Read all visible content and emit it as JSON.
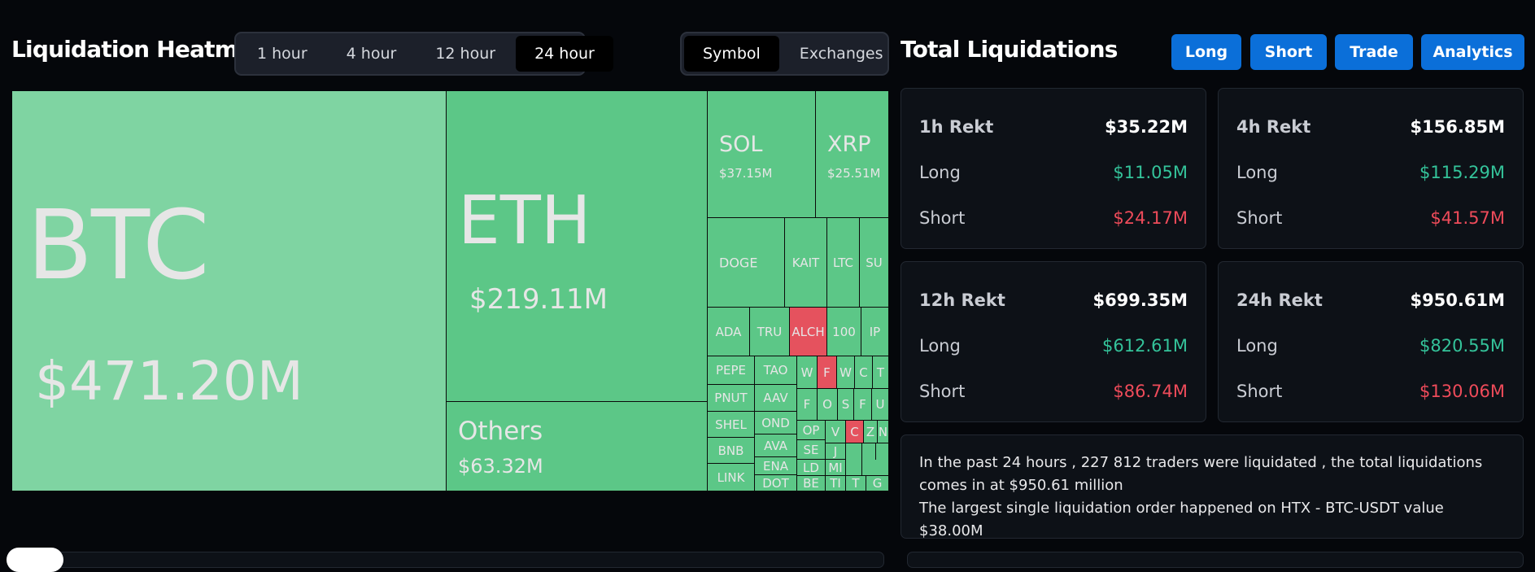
{
  "heatmap": {
    "title": "Liquidation Heatmap",
    "timeframes": [
      "1 hour",
      "4 hour",
      "12 hour",
      "24 hour"
    ],
    "active_timeframe": "24 hour",
    "views": [
      "Symbol",
      "Exchanges"
    ],
    "active_view": "Symbol",
    "cells": [
      {
        "symbol": "BTC",
        "amount": "$471.20M"
      },
      {
        "symbol": "ETH",
        "amount": "$219.11M"
      },
      {
        "symbol": "Others",
        "amount": "$63.32M"
      },
      {
        "symbol": "SOL",
        "amount": "$37.15M"
      },
      {
        "symbol": "XRP",
        "amount": "$25.51M"
      },
      {
        "symbol": "DOGE"
      },
      {
        "symbol": "KAIT"
      },
      {
        "symbol": "LTC"
      },
      {
        "symbol": "SU"
      },
      {
        "symbol": "ADA"
      },
      {
        "symbol": "TRU"
      },
      {
        "symbol": "ALCH"
      },
      {
        "symbol": "100"
      },
      {
        "symbol": "IP"
      },
      {
        "symbol": "PEPE"
      },
      {
        "symbol": "TAO"
      },
      {
        "symbol": "PNUT"
      },
      {
        "symbol": "AAV"
      },
      {
        "symbol": "SHEL"
      },
      {
        "symbol": "OND"
      },
      {
        "symbol": "AVA"
      },
      {
        "symbol": "BNB"
      },
      {
        "symbol": "ENA"
      },
      {
        "symbol": "LINK"
      },
      {
        "symbol": "DOT"
      },
      {
        "symbol": "OP"
      },
      {
        "symbol": "SE"
      },
      {
        "symbol": "LD"
      },
      {
        "symbol": "BE"
      },
      {
        "symbol": "MI"
      },
      {
        "symbol": "TI"
      },
      {
        "symbol": "J"
      },
      {
        "symbol": "W"
      },
      {
        "symbol": "F"
      },
      {
        "symbol": "W"
      },
      {
        "symbol": "C"
      },
      {
        "symbol": "T"
      },
      {
        "symbol": "F"
      },
      {
        "symbol": "O"
      },
      {
        "symbol": "S"
      },
      {
        "symbol": "F"
      },
      {
        "symbol": "U"
      },
      {
        "symbol": "V"
      },
      {
        "symbol": "C"
      },
      {
        "symbol": "Z"
      },
      {
        "symbol": "N"
      },
      {
        "symbol": "T"
      },
      {
        "symbol": "G"
      }
    ],
    "colors": {
      "long_dominant": "#5cc787",
      "btc": "#7fd4a2",
      "short_dominant": "#e5525e"
    }
  },
  "totals": {
    "title": "Total Liquidations",
    "buttons": [
      "Long",
      "Short",
      "Trade",
      "Analytics"
    ],
    "cards": [
      {
        "title": "1h Rekt",
        "total": "$35.22M",
        "long_label": "Long",
        "long": "$11.05M",
        "short_label": "Short",
        "short": "$24.17M"
      },
      {
        "title": "4h Rekt",
        "total": "$156.85M",
        "long_label": "Long",
        "long": "$115.29M",
        "short_label": "Short",
        "short": "$41.57M"
      },
      {
        "title": "12h Rekt",
        "total": "$699.35M",
        "long_label": "Long",
        "long": "$612.61M",
        "short_label": "Short",
        "short": "$86.74M"
      },
      {
        "title": "24h Rekt",
        "total": "$950.61M",
        "long_label": "Long",
        "long": "$820.55M",
        "short_label": "Short",
        "short": "$130.06M"
      }
    ],
    "summary_line1": "In the past 24 hours , 227 812 traders were liquidated , the total liquidations comes in at $950.61 million",
    "summary_line2": "The largest single liquidation order happened on HTX - BTC-USDT value $38.00M"
  }
}
